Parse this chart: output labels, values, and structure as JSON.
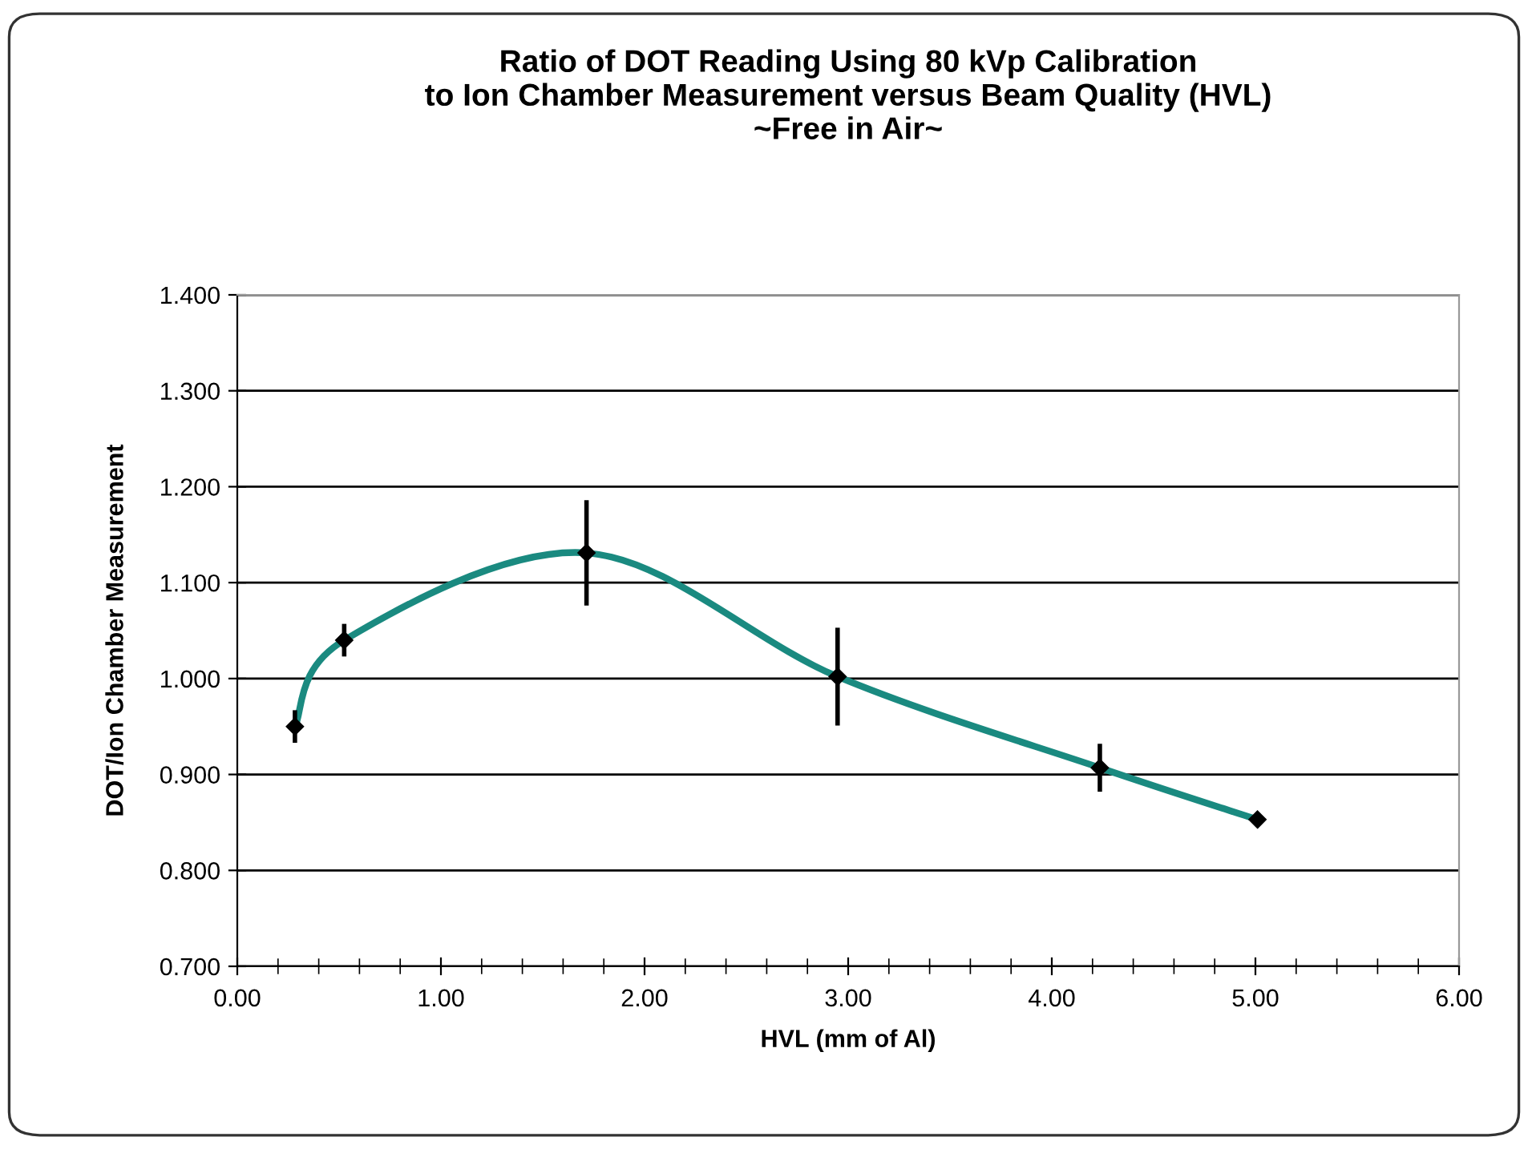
{
  "chart_data": {
    "type": "line",
    "title": "Ratio of DOT Reading Using 80 kVp Calibration\nto Ion Chamber Measurement versus Beam Quality (HVL)\n~Free in Air~",
    "xlabel": "HVL (mm of Al)",
    "ylabel": "DOT/Ion Chamber Measurement",
    "x": [
      0.283,
      0.525,
      1.715,
      2.948,
      4.236,
      5.01
    ],
    "series": [
      {
        "color": "#1a8a80",
        "values": [
          0.95,
          1.04,
          1.131,
          1.002,
          0.907,
          0.853
        ],
        "errors": [
          0.017,
          0.017,
          0.055,
          0.051,
          0.025,
          0.007
        ]
      }
    ],
    "marker": "diamond",
    "line_style": "solid",
    "grid": "y",
    "legend": false,
    "xlim": [
      0,
      6
    ],
    "ylim": [
      0.7,
      1.4
    ],
    "xticks": [
      {
        "value": 0,
        "label": "0.00"
      },
      {
        "value": 1,
        "label": "1.00"
      },
      {
        "value": 2,
        "label": "2.00"
      },
      {
        "value": 3,
        "label": "3.00"
      },
      {
        "value": 4,
        "label": "4.00"
      },
      {
        "value": 5,
        "label": "5.00"
      },
      {
        "value": 6,
        "label": "6.00"
      }
    ],
    "yticks": [
      {
        "value": 0.7,
        "label": "0.700"
      },
      {
        "value": 0.8,
        "label": "0.800"
      },
      {
        "value": 0.9,
        "label": "0.900"
      },
      {
        "value": 1.0,
        "label": "1.000"
      },
      {
        "value": 1.1,
        "label": "1.100"
      },
      {
        "value": 1.2,
        "label": "1.200"
      },
      {
        "value": 1.3,
        "label": "1.300"
      },
      {
        "value": 1.4,
        "label": "1.400"
      }
    ]
  }
}
